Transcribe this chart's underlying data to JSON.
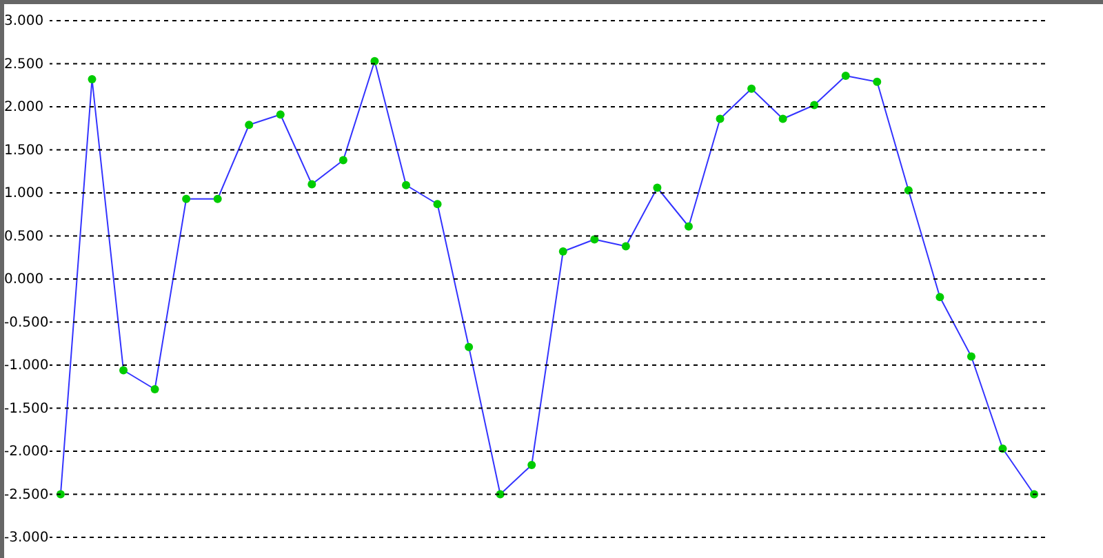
{
  "chart_data": {
    "type": "line",
    "categories": [
      null,
      null,
      null,
      null,
      null,
      null,
      null,
      null,
      null,
      null,
      null,
      null,
      null,
      null,
      null,
      null,
      null,
      null,
      null,
      null,
      null,
      null,
      null,
      null,
      null,
      null,
      null,
      null,
      null,
      null,
      null,
      null
    ],
    "series": [
      {
        "color": "#3333ff",
        "colors": [
          "#00cc00",
          "#00cc00",
          "#00cc00",
          "#00cc00",
          "#00cc00",
          "#00cc00",
          "#00cc00",
          "#00cc00",
          "#00cc00",
          "#00cc00",
          "#00cc00",
          "#00cc00",
          "#00cc00",
          "#00cc00",
          "#00cc00",
          "#00cc00",
          "#00cc00",
          "#00cc00",
          "#00cc00",
          "#00cc00",
          "#00cc00",
          "#00cc00",
          "#00cc00",
          "#00cc00",
          "#00cc00",
          "#00cc00",
          "#00cc00",
          "#00cc00",
          "#00cc00",
          "#00cc00",
          "#00cc00",
          "#00cc00"
        ],
        "values": [
          -2.5,
          2.32,
          -1.06,
          -1.28,
          0.93,
          0.93,
          1.79,
          1.91,
          1.1,
          1.38,
          2.53,
          1.09,
          0.87,
          -0.79,
          -2.5,
          -2.16,
          0.32,
          0.46,
          0.38,
          1.06,
          0.61,
          1.86,
          2.21,
          1.86,
          2.02,
          2.36,
          2.29,
          1.03,
          -0.21,
          -0.9,
          -1.97,
          -2.5
        ]
      }
    ],
    "ylim": [
      -3,
      3
    ],
    "yticks": [
      {
        "value": -3,
        "label": "-3.000"
      },
      {
        "value": -2.5,
        "label": "-2.500"
      },
      {
        "value": -2,
        "label": "-2.000"
      },
      {
        "value": -1.5,
        "label": "-1.500"
      },
      {
        "value": -1,
        "label": "-1.000"
      },
      {
        "value": -0.5,
        "label": "-0.500"
      },
      {
        "value": 0,
        "label": "0.000"
      },
      {
        "value": 0.5,
        "label": "0.500"
      },
      {
        "value": 1,
        "label": "1.000"
      },
      {
        "value": 1.5,
        "label": "1.500"
      },
      {
        "value": 2,
        "label": "2.000"
      },
      {
        "value": 2.5,
        "label": "2.500"
      },
      {
        "value": 3,
        "label": "3.000"
      }
    ],
    "grid": "y",
    "marker": "circle",
    "line_style": "solid",
    "tick_labels": "y"
  }
}
